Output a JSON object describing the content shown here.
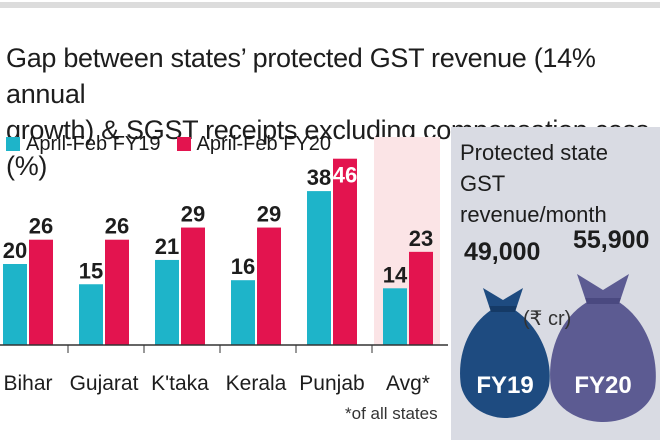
{
  "chart_data": {
    "type": "bar",
    "title_lines": [
      "Gap between states’ protected GST revenue (14% annual",
      "growth) & SGST receipts excluding compensation cess (%)"
    ],
    "categories": [
      "Bihar",
      "Gujarat",
      "K'taka",
      "Kerala",
      "Punjab",
      "Avg*"
    ],
    "series": [
      {
        "name": "April-Feb FY19",
        "color": "#1eb4c9",
        "values": [
          20,
          15,
          21,
          16,
          38,
          14
        ]
      },
      {
        "name": "April-Feb FY20",
        "color": "#e3144f",
        "values": [
          26,
          26,
          29,
          29,
          46,
          23
        ]
      }
    ],
    "highlight_category": "Avg*",
    "highlight_color": "#fbe4e6",
    "footnote": "*of all states",
    "ylim": [
      0,
      50
    ]
  },
  "side_panel": {
    "title_lines": [
      "Protected state",
      "GST revenue/month"
    ],
    "unit": "(₹ cr)",
    "bags": [
      {
        "label": "FY19",
        "value": "49,000",
        "color": "#1e4b80"
      },
      {
        "label": "FY20",
        "value": "55,900",
        "color": "#5c5b92"
      }
    ]
  }
}
